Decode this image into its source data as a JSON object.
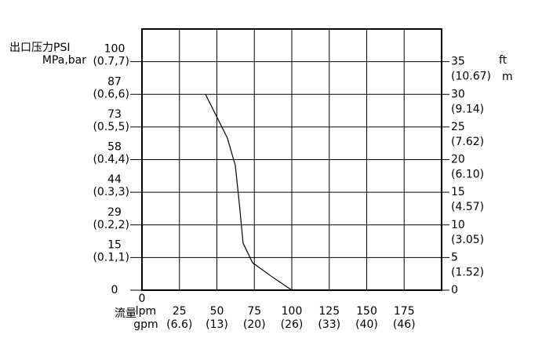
{
  "chart_data": {
    "type": "line",
    "y_left_title": "出口压力PSI",
    "y_left_unit": "MPa,bar",
    "y_right_units": [
      "ft",
      "m"
    ],
    "x_label": "流量",
    "x_units": [
      "lpm",
      "gpm"
    ],
    "xlim": [
      0,
      200
    ],
    "xticks": [
      0,
      25,
      50,
      75,
      100,
      125,
      150,
      175,
      200
    ],
    "x_tick_labels": [
      "0",
      "25",
      "50",
      "75",
      "100",
      "125",
      "150",
      "175",
      null
    ],
    "x_sublabels": [
      null,
      "(6.6)",
      "(13)",
      "(20)",
      "(26)",
      "(33)",
      "(40)",
      "(46)",
      null
    ],
    "ylim": [
      0,
      40
    ],
    "yticks": [
      0,
      5,
      10,
      15,
      20,
      25,
      30,
      35
    ],
    "y_left_ticks": [
      {
        "value": 0,
        "label": "0"
      },
      {
        "value": 5,
        "label": "15"
      },
      {
        "value": 10,
        "label": "29"
      },
      {
        "value": 15,
        "label": "44"
      },
      {
        "value": 20,
        "label": "58"
      },
      {
        "value": 25,
        "label": "73"
      },
      {
        "value": 30,
        "label": "87"
      },
      {
        "value": 35,
        "label": "100"
      }
    ],
    "y_left_sublabels": [
      null,
      "(0.1,1)",
      "(0.2,2)",
      "(0.3,3)",
      "(0.4,4)",
      "(0.5,5)",
      "(0.6,6)",
      "(0.7,7)"
    ],
    "y_right_sublabels": [
      null,
      "(1.52)",
      "(3.05)",
      "(4.57)",
      "(6.10)",
      "(7.62)",
      "(9.14)",
      "(10.67)"
    ],
    "grid": true,
    "series": [
      {
        "color": "#000000",
        "x": [
          42.4,
          57,
          62.3,
          65,
          67.5,
          73.8,
          85.9,
          100
        ],
        "values": [
          30,
          23.3,
          19.1,
          13.2,
          7.2,
          4.2,
          2.2,
          0
        ]
      }
    ]
  }
}
